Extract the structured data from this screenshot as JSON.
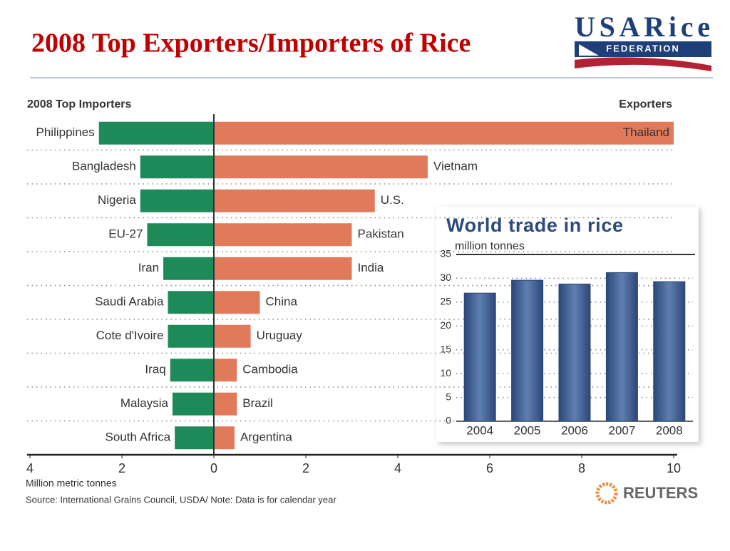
{
  "slide_title": "2008 Top Exporters/Importers of Rice",
  "logo": {
    "name": "USARice",
    "sub": "FEDERATION"
  },
  "credit": "REUTERS",
  "chart_data": [
    {
      "type": "butterfly",
      "x_label": "Million metric tonnes",
      "source": "Source: International Grains Council, USDA/ Note: Data is for calendar year",
      "xlim": [
        -4,
        10
      ],
      "xticks": [
        {
          "value": -4,
          "label": "4"
        },
        {
          "value": -2,
          "label": "2"
        },
        0,
        2,
        4,
        6,
        8,
        10
      ],
      "series": [
        {
          "name": "2008 Top Importers",
          "side": "left",
          "color": "#1e8a5a",
          "categories": [
            "Philippines",
            "Bangladesh",
            "Nigeria",
            "EU-27",
            "Iran",
            "Saudi Arabia",
            "Cote d'Ivoire",
            "Iraq",
            "Malaysia",
            "South Africa"
          ],
          "values": [
            2.5,
            1.6,
            1.6,
            1.45,
            1.1,
            1.0,
            1.0,
            0.95,
            0.9,
            0.85
          ]
        },
        {
          "name": "Exporters",
          "side": "right",
          "color": "#e07a5a",
          "categories": [
            "Thailand",
            "Vietnam",
            "U.S.",
            "Pakistan",
            "India",
            "China",
            "Uruguay",
            "Cambodia",
            "Brazil",
            "Argentina"
          ],
          "values": [
            10.0,
            4.65,
            3.5,
            3.0,
            3.0,
            1.0,
            0.8,
            0.5,
            0.5,
            0.45
          ]
        }
      ]
    },
    {
      "type": "bar",
      "title": "World trade in rice",
      "subtitle": "million tonnes",
      "categories": [
        "2004",
        "2005",
        "2006",
        "2007",
        "2008"
      ],
      "values": [
        26.9,
        29.6,
        28.8,
        31.2,
        29.3
      ],
      "color": "#3f5f93",
      "ylim": [
        0,
        35
      ],
      "yticks": [
        0,
        5,
        10,
        15,
        20,
        25,
        30,
        35
      ],
      "grid": true
    }
  ]
}
